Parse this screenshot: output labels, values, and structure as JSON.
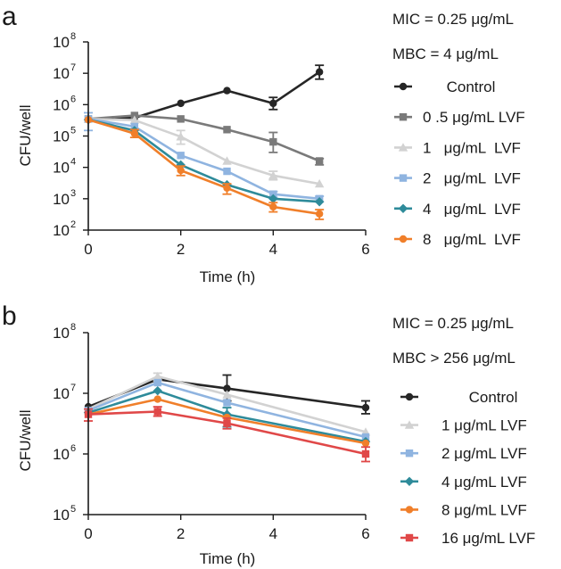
{
  "chart_data": [
    {
      "type": "line",
      "panel_label": "a",
      "annotations": [
        "MIC = 0.25  μg/mL",
        "MBC =   4   μg/mL"
      ],
      "xlabel": "Time (h)",
      "ylabel": "CFU/well",
      "yscale": "log",
      "xlim": [
        0,
        6
      ],
      "ylim": [
        100,
        100000000
      ],
      "x_ticks": [
        0,
        2,
        4,
        6
      ],
      "x_tick_labels": [
        "0",
        "2",
        "4",
        "6"
      ],
      "y_ticks": [
        100,
        1000,
        10000,
        100000,
        1000000,
        10000000,
        100000000
      ],
      "y_tick_labels": [
        {
          "base": "10",
          "exp": "2"
        },
        {
          "base": "10",
          "exp": "3"
        },
        {
          "base": "10",
          "exp": "4"
        },
        {
          "base": "10",
          "exp": "5"
        },
        {
          "base": "10",
          "exp": "6"
        },
        {
          "base": "10",
          "exp": "7"
        },
        {
          "base": "10",
          "exp": "8"
        }
      ],
      "legend_position": "right",
      "series": [
        {
          "name": "Control",
          "color": "#262626",
          "marker": "circle",
          "x": [
            0,
            1,
            2,
            3,
            4,
            5
          ],
          "y": [
            350000,
            380000,
            1100000,
            2800000,
            1100000,
            11000000
          ],
          "err_low": [
            null,
            null,
            null,
            null,
            700000,
            6500000
          ],
          "err_high": [
            null,
            null,
            null,
            null,
            1700000,
            18000000
          ]
        },
        {
          "name": "0 .5 μg/mL LVF",
          "color": "#7a7a7a",
          "marker": "square",
          "x": [
            0,
            1,
            2,
            3,
            4,
            5
          ],
          "y": [
            350000,
            450000,
            350000,
            160000,
            65000,
            16000
          ],
          "err_low": [
            null,
            null,
            null,
            null,
            30000,
            12000
          ],
          "err_high": [
            null,
            null,
            null,
            null,
            130000,
            19000
          ]
        },
        {
          "name": "1   μg/mL  LVF",
          "color": "#d2d2d2",
          "marker": "triangle",
          "x": [
            0,
            1,
            2,
            3,
            4,
            5
          ],
          "y": [
            350000,
            320000,
            95000,
            16000,
            5500,
            3000
          ],
          "err_low": [
            null,
            null,
            55000,
            null,
            4000,
            null
          ],
          "err_high": [
            null,
            null,
            150000,
            null,
            7500,
            null
          ]
        },
        {
          "name": "2   μg/mL  LVF",
          "color": "#8fb4e0",
          "marker": "square",
          "x": [
            0,
            1,
            2,
            3,
            4,
            5
          ],
          "y": [
            350000,
            200000,
            24000,
            7500,
            1400,
            1000
          ],
          "err_low": [
            150000,
            null,
            null,
            null,
            1100,
            800
          ],
          "err_high": [
            550000,
            null,
            null,
            null,
            1700,
            1200
          ]
        },
        {
          "name": "4   μg/mL  LVF",
          "color": "#2e8b9a",
          "marker": "diamond",
          "x": [
            0,
            1,
            2,
            3,
            4,
            5
          ],
          "y": [
            330000,
            150000,
            12000,
            2800,
            1000,
            800
          ],
          "err_low": [
            null,
            null,
            null,
            null,
            null,
            null
          ],
          "err_high": [
            null,
            null,
            null,
            null,
            null,
            null
          ]
        },
        {
          "name": "8   μg/mL  LVF",
          "color": "#f07f2a",
          "marker": "circle",
          "x": [
            0,
            1,
            2,
            3,
            4,
            5
          ],
          "y": [
            330000,
            120000,
            8000,
            2200,
            550,
            330
          ],
          "err_low": [
            null,
            90000,
            5500,
            1400,
            380,
            220
          ],
          "err_high": [
            null,
            160000,
            11000,
            3000,
            750,
            450
          ]
        }
      ]
    },
    {
      "type": "line",
      "panel_label": "b",
      "annotations": [
        "MIC = 0.25 μg/mL",
        "MBC > 256 μg/mL"
      ],
      "xlabel": "Time (h)",
      "ylabel": "CFU/well",
      "yscale": "log",
      "xlim": [
        0,
        6
      ],
      "ylim": [
        100000,
        100000000
      ],
      "x_ticks": [
        0,
        2,
        4,
        6
      ],
      "x_tick_labels": [
        "0",
        "2",
        "4",
        "6"
      ],
      "y_ticks": [
        100000,
        1000000,
        10000000,
        100000000
      ],
      "y_tick_labels": [
        {
          "base": "10",
          "exp": "5"
        },
        {
          "base": "10",
          "exp": "6"
        },
        {
          "base": "10",
          "exp": "7"
        },
        {
          "base": "10",
          "exp": "8"
        }
      ],
      "legend_position": "right",
      "series": [
        {
          "name": "Control",
          "color": "#262626",
          "marker": "circle",
          "x": [
            0,
            1.5,
            3,
            6
          ],
          "y": [
            6000000,
            17000000,
            12000000,
            5800000
          ],
          "err_low": [
            null,
            null,
            7500000,
            4600000
          ],
          "err_high": [
            null,
            null,
            20000000,
            7500000
          ]
        },
        {
          "name": "1 μg/mL LVF",
          "color": "#d2d2d2",
          "marker": "triangle",
          "x": [
            0,
            1.5,
            3,
            6
          ],
          "y": [
            5500000,
            19000000,
            9500000,
            2300000
          ],
          "err_low": [
            null,
            16000000,
            null,
            null
          ],
          "err_high": [
            null,
            21500000,
            null,
            null
          ]
        },
        {
          "name": "2 μg/mL LVF",
          "color": "#8fb4e0",
          "marker": "square",
          "x": [
            0,
            1.5,
            3,
            6
          ],
          "y": [
            5200000,
            15000000,
            7000000,
            1900000
          ],
          "err_low": [
            null,
            null,
            null,
            null
          ],
          "err_high": [
            null,
            null,
            null,
            null
          ]
        },
        {
          "name": "4 μg/mL LVF",
          "color": "#2e8b9a",
          "marker": "diamond",
          "x": [
            0,
            1.5,
            3,
            6
          ],
          "y": [
            4800000,
            11000000,
            4500000,
            1600000
          ],
          "err_low": [
            null,
            null,
            2800000,
            null
          ],
          "err_high": [
            null,
            null,
            5800000,
            null
          ]
        },
        {
          "name": "8 μg/mL LVF",
          "color": "#f07f2a",
          "marker": "circle",
          "x": [
            0,
            1.5,
            3,
            6
          ],
          "y": [
            4500000,
            8000000,
            4000000,
            1500000
          ],
          "err_low": [
            null,
            null,
            null,
            null
          ],
          "err_high": [
            null,
            null,
            null,
            null
          ]
        },
        {
          "name": "16 μg/mL LVF",
          "color": "#e04848",
          "marker": "square",
          "x": [
            0,
            1.5,
            3,
            6
          ],
          "y": [
            4500000,
            5000000,
            3200000,
            1000000
          ],
          "err_low": [
            3500000,
            4200000,
            2600000,
            750000
          ],
          "err_high": [
            5500000,
            6000000,
            3900000,
            1300000
          ]
        }
      ]
    }
  ]
}
